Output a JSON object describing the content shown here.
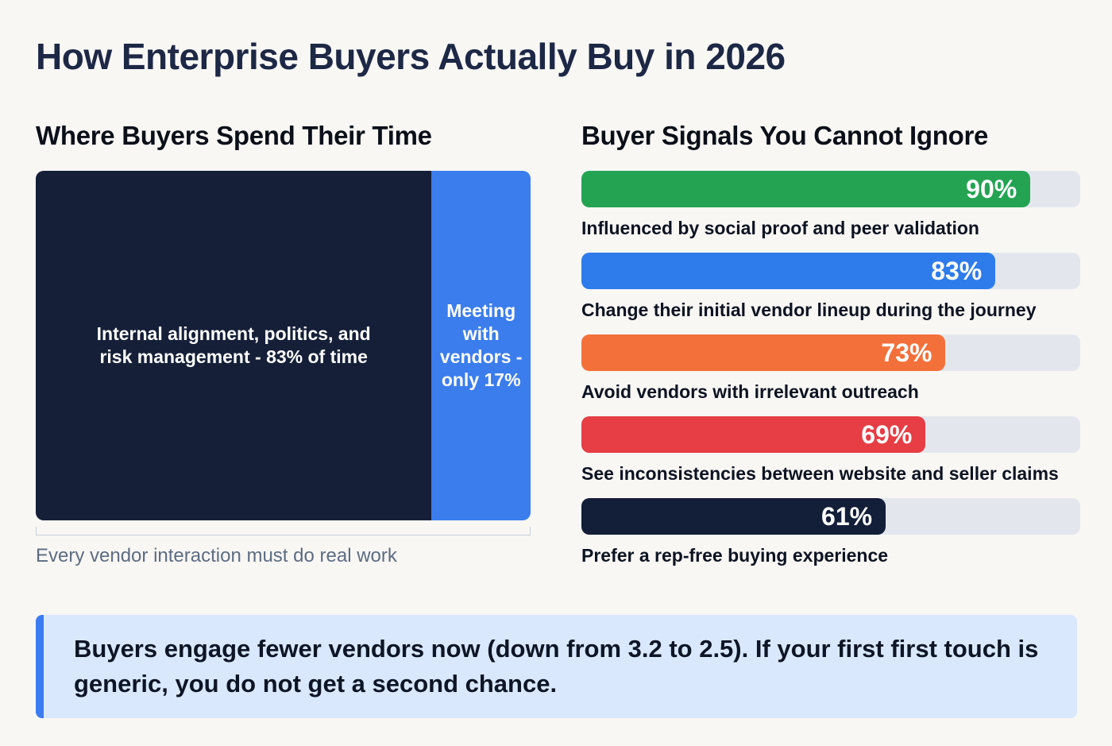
{
  "page": {
    "title": "How Enterprise Buyers Actually Buy in 2026",
    "background": "#f8f7f4"
  },
  "time_chart": {
    "heading": "Where Buyers Spend Their Time",
    "segments": [
      {
        "label": "Internal alignment, politics, and risk management - 83% of time",
        "value": 83,
        "width_pct": 80,
        "color": "#151f38"
      },
      {
        "label": "Meeting with vendors - only 17%",
        "value": 17,
        "width_pct": 20,
        "color": "#3b7ded"
      }
    ],
    "caption": "Every vendor interaction must do real work"
  },
  "signals_chart": {
    "heading": "Buyer Signals You Cannot Ignore",
    "track_color": "#e3e7ed",
    "bars": [
      {
        "pct": "90%",
        "value": 90,
        "color": "#24a453",
        "label": "Influenced by social proof and peer validation"
      },
      {
        "pct": "83%",
        "value": 83,
        "color": "#2e7ceb",
        "label": "Change their initial vendor lineup during the journey"
      },
      {
        "pct": "73%",
        "value": 73,
        "color": "#f4703a",
        "label": "Avoid vendors with irrelevant outreach"
      },
      {
        "pct": "69%",
        "value": 69,
        "color": "#e73d45",
        "label": "See inconsistencies between website and seller claims"
      },
      {
        "pct": "61%",
        "value": 61,
        "color": "#131e38",
        "label": "Prefer a rep-free buying experience"
      }
    ]
  },
  "callout": {
    "text": "Buyers engage fewer vendors now (down from 3.2 to 2.5). If your first first touch is generic, you do not get a second chance.",
    "accent_color": "#3b7cf0",
    "background_color": "#d9e8fc"
  },
  "chart_data": [
    {
      "type": "bar",
      "subtype": "stacked-horizontal-single-row",
      "title": "Where Buyers Spend Their Time",
      "categories": [
        "Internal alignment, politics, and risk management",
        "Meeting with vendors"
      ],
      "values": [
        83,
        17
      ],
      "unit": "% of time",
      "colors": [
        "#151f38",
        "#3b7ded"
      ],
      "annotation": "Every vendor interaction must do real work",
      "legend_position": "none",
      "grid": false
    },
    {
      "type": "bar",
      "subtype": "horizontal",
      "title": "Buyer Signals You Cannot Ignore",
      "categories": [
        "Influenced by social proof and peer validation",
        "Change their initial vendor lineup during the journey",
        "Avoid vendors with irrelevant outreach",
        "See inconsistencies between website and seller claims",
        "Prefer a rep-free buying experience"
      ],
      "values": [
        90,
        83,
        73,
        69,
        61
      ],
      "unit": "%",
      "colors": [
        "#24a453",
        "#2e7ceb",
        "#f4703a",
        "#e73d45",
        "#131e38"
      ],
      "xlim": [
        0,
        100
      ],
      "data_labels": "inside-end",
      "legend_position": "none",
      "grid": false
    },
    {
      "type": "table",
      "title": "Key insight",
      "note": "Buyers engage fewer vendors now (down from 3.2 to 2.5). If your first first touch is generic, you do not get a second chance.",
      "values": [
        3.2,
        2.5
      ]
    }
  ]
}
